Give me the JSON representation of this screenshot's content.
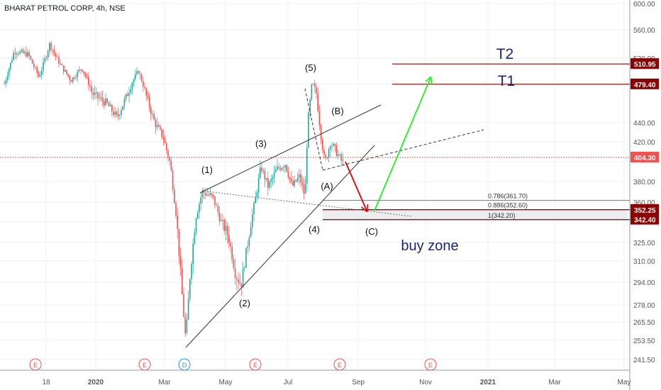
{
  "symbol_title": "BHARAT PETROL CORP, 4h, NSE",
  "colors": {
    "up": "#26a69a",
    "down": "#ef5350",
    "grid": "#eef0f3",
    "price_line": "#d32f2f",
    "level_line": "#8b0000",
    "target_text": "#1a237e",
    "green_arrow": "#22ee22",
    "red_arrow": "#e00000",
    "trend": "#333333",
    "axis_text": "#555555"
  },
  "chart_data": {
    "type": "candlestick",
    "title": "BHARAT PETROL CORP, 4h, NSE",
    "y_ticks": [
      241.5,
      253.5,
      265.5,
      278.0,
      294.0,
      310.0,
      325.0,
      340.0,
      360.0,
      380.0,
      400.0,
      420.0,
      440.0,
      480.0,
      520.0,
      560.0,
      600.0
    ],
    "y_tick_labels": [
      "241.50",
      "253.50",
      "265.50",
      "278.00",
      "294.00",
      "310.00",
      "325.00",
      "",
      "360.00",
      "380.00",
      "",
      "420.00",
      "440.00",
      "",
      "520.00",
      "560.00",
      "600.00"
    ],
    "x_labels": [
      "18",
      "2020",
      "Mar",
      "May",
      "Jul",
      "Sep",
      "Nov",
      "2021",
      "Mar",
      "May"
    ],
    "current_price": "404.30",
    "price_levels": [
      {
        "label": "510.95",
        "value": 510.95
      },
      {
        "label": "479.40",
        "value": 479.4
      },
      {
        "label": "352.25",
        "value": 352.25
      },
      {
        "label": "342.40",
        "value": 342.4
      }
    ],
    "targets": [
      {
        "name": "T2",
        "value": 510.95
      },
      {
        "name": "T1",
        "value": 479.4
      }
    ],
    "fib_levels": [
      {
        "label": "0.786(361.70)",
        "value": 361.7
      },
      {
        "label": "0.886(352.60)",
        "value": 352.6
      },
      {
        "label": "1(342.20)",
        "value": 342.2
      }
    ],
    "zone_label": "buy zone",
    "wave_labels": [
      "(1)",
      "(2)",
      "(3)",
      "(4)",
      "(5)",
      "(A)",
      "(B)",
      "(C)"
    ],
    "event_markers": [
      "E",
      "E",
      "D",
      "E",
      "E",
      "E"
    ],
    "price_path": [
      [
        6,
        480
      ],
      [
        20,
        530
      ],
      [
        40,
        525
      ],
      [
        55,
        490
      ],
      [
        70,
        540
      ],
      [
        85,
        510
      ],
      [
        100,
        485
      ],
      [
        115,
        505
      ],
      [
        130,
        470
      ],
      [
        150,
        460
      ],
      [
        165,
        445
      ],
      [
        180,
        470
      ],
      [
        195,
        500
      ],
      [
        205,
        470
      ],
      [
        218,
        440
      ],
      [
        230,
        425
      ],
      [
        240,
        398
      ],
      [
        248,
        350
      ],
      [
        256,
        290
      ],
      [
        262,
        252
      ],
      [
        268,
        300
      ],
      [
        276,
        345
      ],
      [
        285,
        370
      ],
      [
        300,
        365
      ],
      [
        312,
        340
      ],
      [
        322,
        330
      ],
      [
        332,
        300
      ],
      [
        340,
        292
      ],
      [
        348,
        320
      ],
      [
        358,
        355
      ],
      [
        368,
        395
      ],
      [
        378,
        375
      ],
      [
        390,
        392
      ],
      [
        402,
        398
      ],
      [
        412,
        375
      ],
      [
        422,
        385
      ],
      [
        430,
        365
      ],
      [
        434,
        440
      ],
      [
        440,
        480
      ],
      [
        446,
        470
      ],
      [
        452,
        430
      ],
      [
        458,
        398
      ],
      [
        466,
        420
      ],
      [
        474,
        410
      ],
      [
        482,
        400
      ]
    ]
  }
}
